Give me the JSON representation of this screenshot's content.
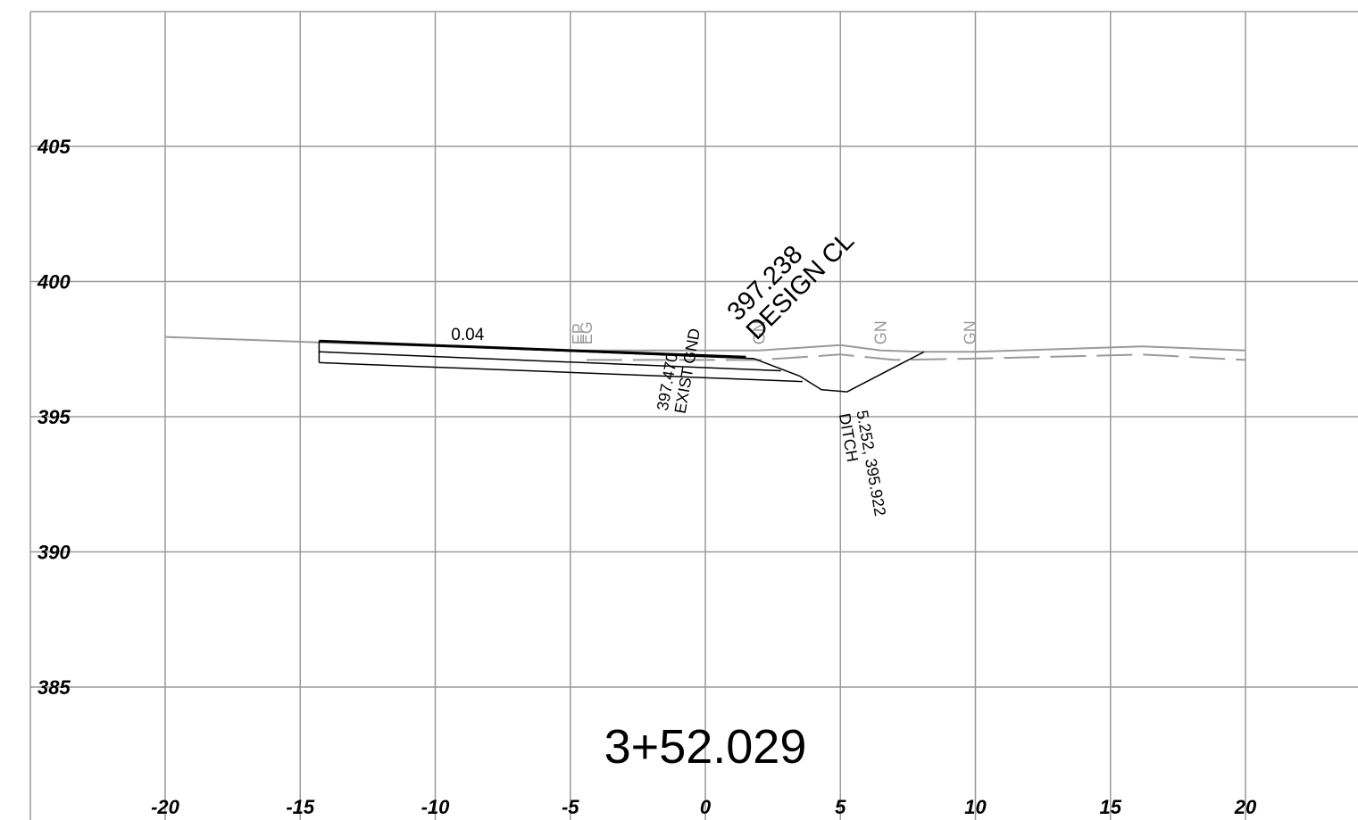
{
  "chart_data": {
    "type": "line",
    "title": "3+52.029",
    "xlabel": "",
    "ylabel": "",
    "xlim": [
      -25,
      24.3
    ],
    "ylim": [
      380.3,
      410
    ],
    "grid": true,
    "x_ticks": [
      -20,
      -15,
      -10,
      -5,
      0,
      5,
      10,
      15,
      20
    ],
    "x_tick_labels": [
      "-20",
      "-15",
      "-10",
      "-5",
      "0",
      "5",
      "10",
      "15",
      "20"
    ],
    "y_ticks": [
      385,
      390,
      395,
      400,
      405
    ],
    "y_tick_labels": [
      "385",
      "390",
      "395",
      "400",
      "405"
    ],
    "series": [
      {
        "role": "existing-ground",
        "color": "#9a9a9a",
        "dash": "solid",
        "points": [
          [
            -20,
            397.95
          ],
          [
            -14.3,
            397.75
          ],
          [
            -5,
            397.45
          ],
          [
            0,
            397.45
          ],
          [
            2.0,
            397.45
          ],
          [
            5.0,
            397.65
          ],
          [
            6.5,
            397.45
          ],
          [
            8.0,
            397.4
          ],
          [
            10.0,
            397.4
          ],
          [
            16.2,
            397.6
          ],
          [
            20.0,
            397.45
          ]
        ]
      },
      {
        "role": "existing-subgrade",
        "color": "#9a9a9a",
        "dash": "dashed",
        "points": [
          [
            -4.4,
            397.1
          ],
          [
            2.0,
            397.1
          ],
          [
            5.0,
            397.3
          ],
          [
            7.0,
            397.1
          ],
          [
            10.0,
            397.15
          ],
          [
            16.2,
            397.3
          ],
          [
            20.0,
            397.1
          ]
        ]
      },
      {
        "role": "finished-grade",
        "color": "#000000",
        "dash": "solid",
        "width": 3,
        "points": [
          [
            -14.3,
            397.8
          ],
          [
            1.5,
            397.2
          ]
        ]
      },
      {
        "role": "pavement-top",
        "color": "#000000",
        "dash": "solid",
        "width": 1.5,
        "points": [
          [
            -14.3,
            397.8
          ],
          [
            1.8,
            397.15
          ],
          [
            3.5,
            396.5
          ],
          [
            4.3,
            396.0
          ],
          [
            5.25,
            395.92
          ],
          [
            8.1,
            397.4
          ]
        ]
      },
      {
        "role": "pavement-layer",
        "color": "#000000",
        "dash": "solid",
        "width": 1.5,
        "points": [
          [
            -14.3,
            397.4
          ],
          [
            2.8,
            396.7
          ]
        ]
      },
      {
        "role": "subbase-bottom",
        "color": "#000000",
        "dash": "solid",
        "width": 1.5,
        "points": [
          [
            -14.3,
            397.0
          ],
          [
            3.6,
            396.3
          ]
        ]
      },
      {
        "role": "left-edge",
        "color": "#000000",
        "dash": "solid",
        "width": 1.5,
        "points": [
          [
            -14.3,
            397.8
          ],
          [
            -14.3,
            397.0
          ]
        ]
      }
    ],
    "annotations": [
      {
        "id": "design-cl",
        "text": "397.238",
        "text2": "DESIGN CL",
        "x": 1.2,
        "y": 398.5,
        "angle": -45
      },
      {
        "id": "exist-gnd",
        "text": "397.470",
        "text2": "EXIST GND",
        "x": -1.4,
        "y": 395.2,
        "angle": -80
      },
      {
        "id": "ditch",
        "text": "5.252, 395.922",
        "text2": "DITCH",
        "x": 5.6,
        "y": 395.2,
        "angle": 80
      },
      {
        "id": "slope",
        "text": "0.04",
        "x": -8.8,
        "y": 397.7,
        "angle": 0
      }
    ],
    "point_markers": [
      {
        "text": "EP",
        "x": -4.7,
        "y": 397.6
      },
      {
        "text": "EG",
        "x": -4.4,
        "y": 397.6
      },
      {
        "text": "GN",
        "x": 2.0,
        "y": 397.6
      },
      {
        "text": "GN",
        "x": 6.5,
        "y": 397.6
      },
      {
        "text": "GN",
        "x": 9.8,
        "y": 397.6
      }
    ],
    "colors": {
      "grid": "#9a9a9a",
      "design": "#000000",
      "existing": "#9a9a9a"
    }
  }
}
